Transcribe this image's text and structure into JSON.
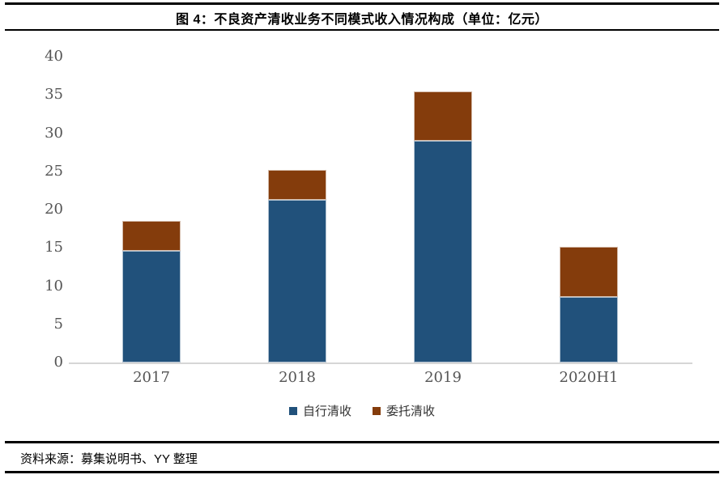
{
  "header": {
    "title": "图 4：不良资产清收业务不同模式收入情况构成（单位：亿元）"
  },
  "chart_data": {
    "type": "bar",
    "stacked": true,
    "title": "图 4：不良资产清收业务不同模式收入情况构成",
    "unit": "亿元",
    "categories": [
      "2017",
      "2018",
      "2019",
      "2020H1"
    ],
    "series": [
      {
        "name": "自行清收",
        "color": "#21517B",
        "values": [
          14.6,
          21.3,
          29.0,
          8.6
        ]
      },
      {
        "name": "委托清收",
        "color": "#843C0C",
        "values": [
          3.9,
          3.9,
          6.4,
          6.5
        ]
      }
    ],
    "totals": [
      18.5,
      25.2,
      35.4,
      15.1
    ],
    "ylim": [
      0,
      40
    ],
    "yticks": [
      0,
      5,
      10,
      15,
      20,
      25,
      30,
      35,
      40
    ],
    "grid": false,
    "legend_position": "bottom",
    "axis_line_color": "#d6d6d6"
  },
  "footer": {
    "source": "资料来源：募集说明书、YY 整理"
  }
}
